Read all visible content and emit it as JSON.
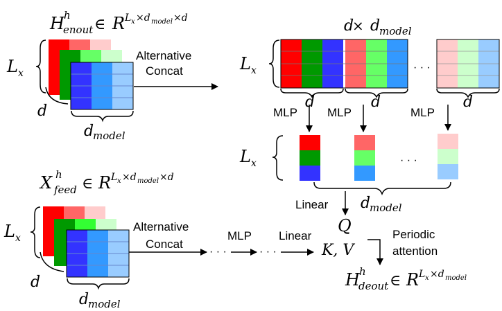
{
  "colors": {
    "red": "#ff0000",
    "green": "#009900",
    "blue": "#3333ff",
    "light_red": "#ff6666",
    "light_green": "#66ff66",
    "light_blue": "#3399ff",
    "pale_red": "#ffcccc",
    "pale_green": "#ccffcc",
    "pale_blue": "#99ccff",
    "line": "#000000"
  },
  "top": {
    "h_base": "H",
    "h_sup": "h",
    "h_sub": "enout",
    "in_sym": "∈",
    "R_base": "R",
    "R_exp_Lx": "L",
    "R_exp_x": "x",
    "R_exp_times": "×d",
    "R_exp_model": "model",
    "R_exp_times_d": "×d",
    "lx_base": "L",
    "lx_sub": "x",
    "d_label": "d",
    "dmodel_base": "d",
    "dmodel_sub": "model",
    "alt_line1": "Alternative",
    "alt_line2": "Concat"
  },
  "right": {
    "title_d": "d",
    "title_times": " × ",
    "title_dmodel": "d",
    "title_model_sub": "model",
    "lx_base": "L",
    "lx_sub": "x",
    "ellipsis": "· · ·",
    "d_label_1": "d",
    "d_label_2": "d",
    "d_label_3": "d",
    "mlp_1": "MLP",
    "mlp_2": "MLP",
    "mlp_3": "MLP",
    "lx2_base": "L",
    "lx2_sub": "x",
    "ellipsis2": "· · ·",
    "dmodel_base": "d",
    "dmodel_sub": "model",
    "linear": "Linear",
    "q_label": "Q"
  },
  "bottom": {
    "x_base": "X",
    "x_sup": "h",
    "x_sub": "feed",
    "in_sym": "∈",
    "R_base": "R",
    "R_exp_Lx": "L",
    "R_exp_x": "x",
    "R_exp_times": "×d",
    "R_exp_model": "model",
    "R_exp_times_d": "×d",
    "lx_base": "L",
    "lx_sub": "x",
    "d_label": "d",
    "dmodel_base": "d",
    "dmodel_sub": "model",
    "alt_line1": "Alternative",
    "alt_line2": "Concat",
    "dots1": "· · ·",
    "mlp": "MLP",
    "dots2": "· · ·",
    "linear": "Linear",
    "kv_label": "K, V",
    "periodic1": "Periodic",
    "periodic2": "attention",
    "out_base": "H",
    "out_sup": "h",
    "out_sub": "deout",
    "out_in": "∈",
    "out_R": "R",
    "out_exp_L": "L",
    "out_exp_x": "x",
    "out_exp_times": "×d",
    "out_exp_model": "model"
  }
}
